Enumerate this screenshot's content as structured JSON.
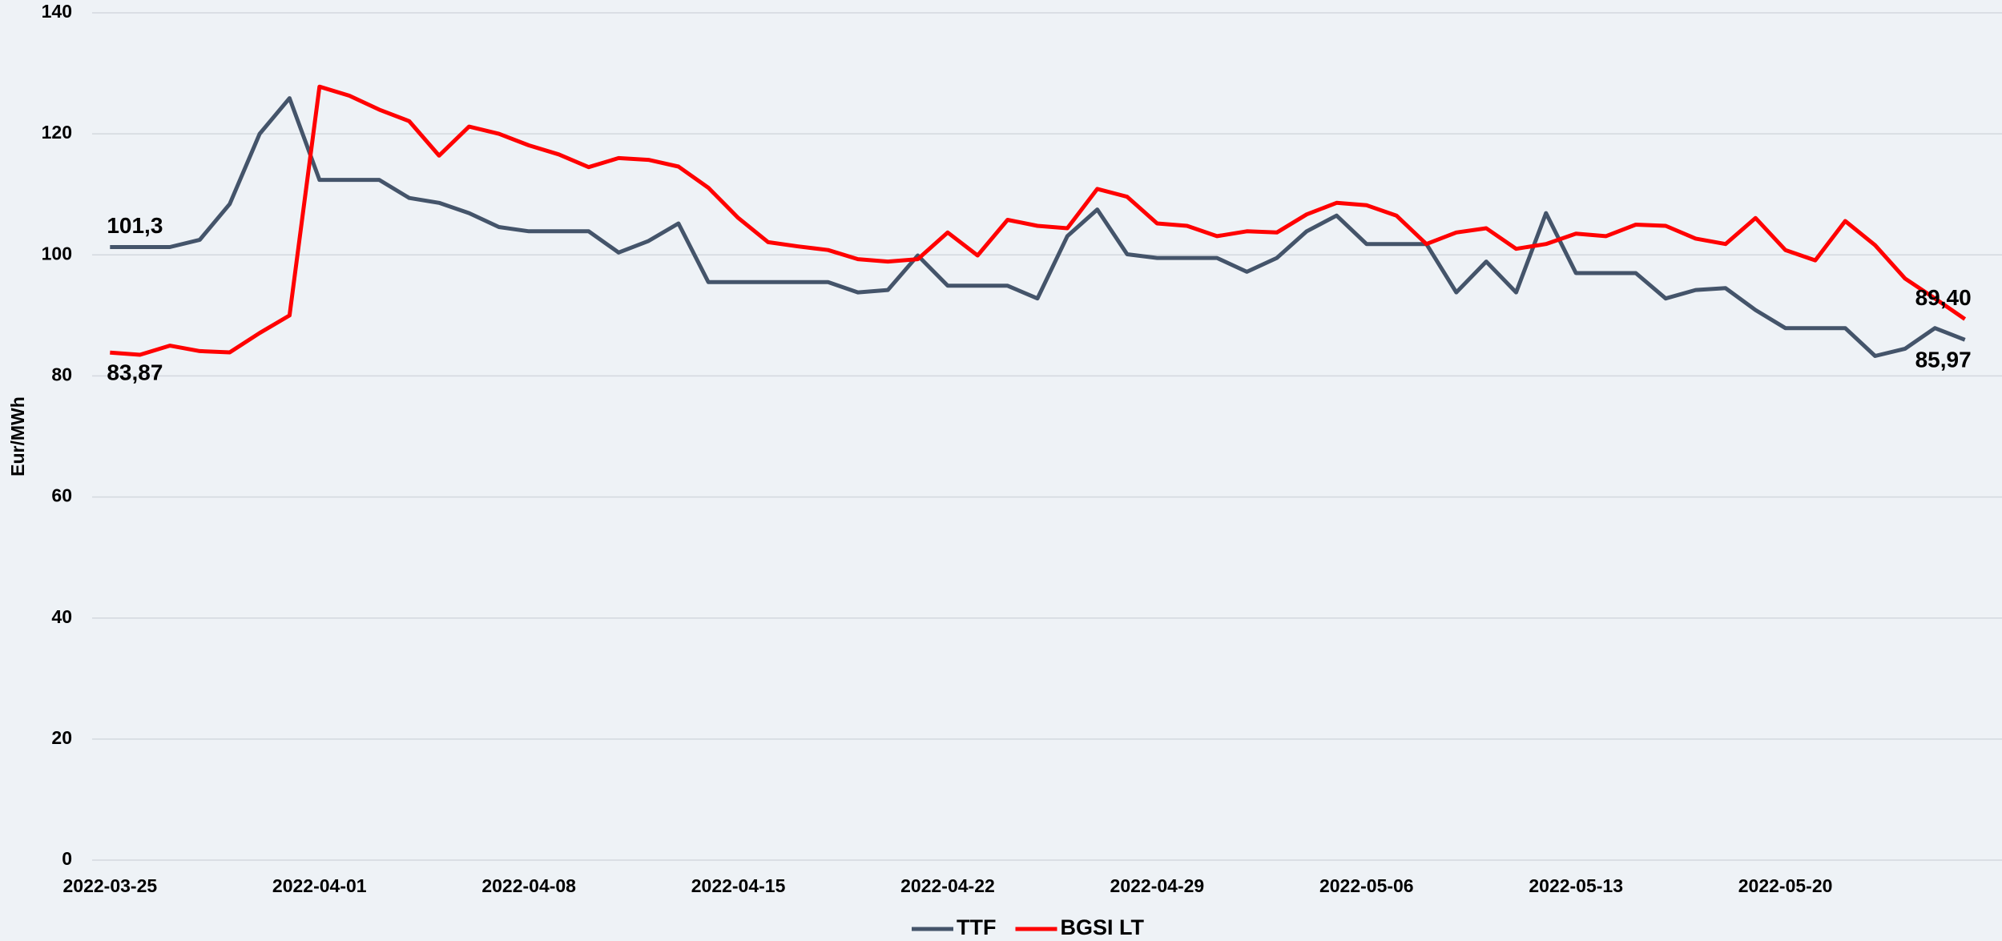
{
  "chart_data": {
    "type": "line",
    "y_label": "Eur/MWh",
    "x": [
      "2022-03-25",
      "2022-03-26",
      "2022-03-27",
      "2022-03-28",
      "2022-03-29",
      "2022-03-30",
      "2022-03-31",
      "2022-04-01",
      "2022-04-02",
      "2022-04-03",
      "2022-04-04",
      "2022-04-05",
      "2022-04-06",
      "2022-04-07",
      "2022-04-08",
      "2022-04-09",
      "2022-04-10",
      "2022-04-11",
      "2022-04-12",
      "2022-04-13",
      "2022-04-14",
      "2022-04-15",
      "2022-04-16",
      "2022-04-17",
      "2022-04-18",
      "2022-04-19",
      "2022-04-20",
      "2022-04-21",
      "2022-04-22",
      "2022-04-23",
      "2022-04-24",
      "2022-04-25",
      "2022-04-26",
      "2022-04-27",
      "2022-04-28",
      "2022-04-29",
      "2022-04-30",
      "2022-05-01",
      "2022-05-02",
      "2022-05-03",
      "2022-05-04",
      "2022-05-05",
      "2022-05-06",
      "2022-05-07",
      "2022-05-08",
      "2022-05-09",
      "2022-05-10",
      "2022-05-11",
      "2022-05-12",
      "2022-05-13",
      "2022-05-14",
      "2022-05-15",
      "2022-05-16",
      "2022-05-17",
      "2022-05-18",
      "2022-05-19",
      "2022-05-20",
      "2022-05-21",
      "2022-05-22",
      "2022-05-23",
      "2022-05-24",
      "2022-05-25",
      "2022-05-26"
    ],
    "series": [
      {
        "name": "TTF",
        "color": "#44546a",
        "values": [
          101.3,
          101.3,
          101.3,
          102.5,
          108.4,
          120.0,
          125.9,
          112.4,
          112.4,
          112.4,
          109.4,
          108.6,
          106.9,
          104.6,
          103.9,
          103.9,
          103.9,
          100.4,
          102.3,
          105.2,
          95.5,
          95.5,
          95.5,
          95.5,
          95.5,
          93.8,
          94.2,
          99.9,
          94.9,
          94.9,
          94.9,
          92.8,
          103.1,
          107.5,
          100.1,
          99.5,
          99.5,
          99.5,
          97.2,
          99.5,
          103.9,
          106.5,
          101.8,
          101.8,
          101.8,
          93.8,
          98.9,
          93.8,
          106.9,
          97.0,
          97.0,
          97.0,
          92.8,
          94.2,
          94.5,
          90.9,
          87.9,
          87.9,
          87.9,
          83.3,
          84.5,
          87.9,
          85.97
        ],
        "value_labels": [
          "101,3",
          null,
          null,
          null,
          null,
          null,
          null,
          null,
          null,
          null,
          null,
          null,
          null,
          null,
          null,
          null,
          null,
          null,
          null,
          null,
          null,
          null,
          null,
          null,
          null,
          null,
          null,
          null,
          null,
          null,
          null,
          null,
          null,
          null,
          null,
          null,
          null,
          null,
          null,
          null,
          null,
          null,
          null,
          null,
          null,
          null,
          null,
          null,
          null,
          null,
          null,
          null,
          null,
          null,
          null,
          null,
          null,
          null,
          null,
          null,
          null,
          null,
          "85,97"
        ]
      },
      {
        "name": "BGSI LT",
        "color": "#ff0000",
        "values": [
          83.87,
          83.5,
          85.0,
          84.1,
          83.9,
          87.1,
          90.0,
          127.8,
          126.3,
          124.0,
          122.1,
          116.4,
          121.2,
          120.0,
          118.1,
          116.6,
          114.5,
          116.0,
          115.7,
          114.6,
          111.1,
          106.1,
          102.1,
          101.4,
          100.8,
          99.3,
          98.9,
          99.3,
          103.7,
          99.9,
          105.8,
          104.8,
          104.4,
          110.9,
          109.6,
          105.2,
          104.8,
          103.1,
          103.9,
          103.7,
          106.7,
          108.6,
          108.2,
          106.5,
          101.8,
          103.7,
          104.4,
          101.0,
          101.8,
          103.5,
          103.1,
          105.0,
          104.8,
          102.7,
          101.8,
          106.1,
          100.8,
          99.1,
          105.6,
          101.6,
          96.1,
          92.8,
          89.4
        ],
        "value_labels": [
          "83,87",
          null,
          null,
          null,
          null,
          null,
          null,
          null,
          null,
          null,
          null,
          null,
          null,
          null,
          null,
          null,
          null,
          null,
          null,
          null,
          null,
          null,
          null,
          null,
          null,
          null,
          null,
          null,
          null,
          null,
          null,
          null,
          null,
          null,
          null,
          null,
          null,
          null,
          null,
          null,
          null,
          null,
          null,
          null,
          null,
          null,
          null,
          null,
          null,
          null,
          null,
          null,
          null,
          null,
          null,
          null,
          null,
          null,
          null,
          null,
          null,
          null,
          "89,40"
        ]
      }
    ],
    "xlim": [
      "2022-03-24",
      "2022-05-27"
    ],
    "xticks": [
      "2022-03-25",
      "2022-04-01",
      "2022-04-08",
      "2022-04-15",
      "2022-04-22",
      "2022-04-29",
      "2022-05-06",
      "2022-05-13",
      "2022-05-20"
    ],
    "ylim": [
      0,
      140
    ],
    "yticks": [
      0,
      20,
      40,
      60,
      80,
      100,
      120,
      140
    ],
    "grid": true,
    "legend": "bottom"
  }
}
